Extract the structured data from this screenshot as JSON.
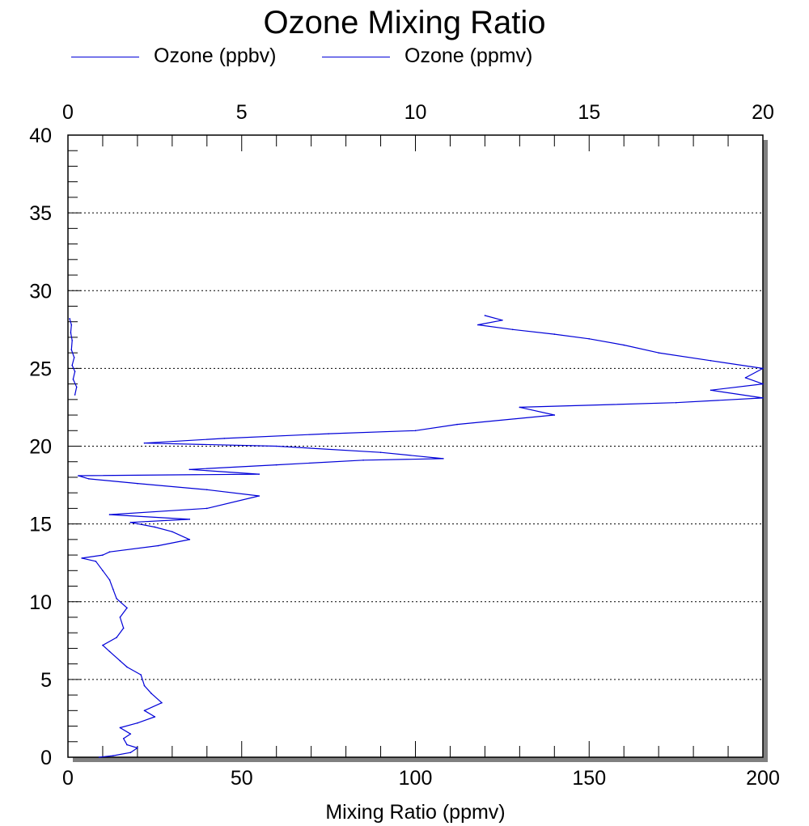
{
  "chart_data": {
    "type": "line",
    "title": "Ozone Mixing Ratio",
    "xlabel": "Mixing Ratio (ppmv)",
    "ylabel": "",
    "xlim_bottom": [
      0,
      200
    ],
    "xlim_top": [
      0,
      20
    ],
    "ylim": [
      0,
      40
    ],
    "x_ticks_bottom": [
      "0",
      "50",
      "100",
      "150",
      "200"
    ],
    "x_ticks_top": [
      "0",
      "5",
      "10",
      "15",
      "20"
    ],
    "y_ticks": [
      "0",
      "5",
      "10",
      "15",
      "20",
      "25",
      "30",
      "35",
      "40"
    ],
    "grid": "horizontal dotted",
    "legend_position": "top",
    "colors": {
      "series": "#0000d8",
      "shadow": "#808080"
    },
    "series": [
      {
        "name": "Ozone (ppbv)",
        "axis": "bottom",
        "points": [
          [
            9,
            0.0
          ],
          [
            13,
            0.1
          ],
          [
            18,
            0.3
          ],
          [
            20,
            0.6
          ],
          [
            17,
            0.8
          ],
          [
            16,
            1.2
          ],
          [
            18,
            1.5
          ],
          [
            15,
            1.9
          ],
          [
            20,
            2.2
          ],
          [
            25,
            2.6
          ],
          [
            22,
            3.0
          ],
          [
            27,
            3.5
          ],
          [
            24,
            4.1
          ],
          [
            22,
            4.6
          ],
          [
            21,
            5.3
          ],
          [
            17,
            5.8
          ],
          [
            15,
            6.2
          ],
          [
            12,
            6.8
          ],
          [
            10,
            7.2
          ],
          [
            14,
            7.7
          ],
          [
            16,
            8.3
          ],
          [
            15,
            9.0
          ],
          [
            17,
            9.6
          ],
          [
            14,
            10.2
          ],
          [
            13,
            10.8
          ],
          [
            12,
            11.4
          ],
          [
            10,
            12.0
          ],
          [
            8,
            12.6
          ],
          [
            4,
            12.8
          ],
          [
            10,
            13.0
          ],
          [
            12,
            13.2
          ],
          [
            26,
            13.6
          ],
          [
            35,
            14.0
          ],
          [
            30,
            14.5
          ],
          [
            25,
            14.8
          ],
          [
            18,
            15.1
          ],
          [
            35,
            15.3
          ],
          [
            12,
            15.6
          ],
          [
            40,
            16.0
          ],
          [
            55,
            16.8
          ],
          [
            40,
            17.2
          ],
          [
            20,
            17.6
          ],
          [
            6,
            17.9
          ],
          [
            3,
            18.1
          ],
          [
            55,
            18.2
          ],
          [
            35,
            18.5
          ],
          [
            60,
            18.8
          ],
          [
            85,
            19.1
          ],
          [
            108,
            19.2
          ],
          [
            90,
            19.6
          ],
          [
            60,
            20.0
          ],
          [
            22,
            20.2
          ],
          [
            45,
            20.5
          ],
          [
            75,
            20.8
          ],
          [
            100,
            21.0
          ],
          [
            112,
            21.4
          ],
          [
            140,
            22.0
          ],
          [
            130,
            22.5
          ],
          [
            175,
            22.8
          ],
          [
            200,
            23.1
          ],
          [
            185,
            23.6
          ],
          [
            200,
            24.0
          ],
          [
            195,
            24.4
          ],
          [
            200,
            25.0
          ],
          [
            185,
            25.5
          ],
          [
            170,
            26.0
          ],
          [
            160,
            26.5
          ],
          [
            150,
            26.9
          ],
          [
            140,
            27.2
          ],
          [
            128,
            27.5
          ],
          [
            118,
            27.8
          ],
          [
            125,
            28.1
          ],
          [
            120,
            28.4
          ]
        ]
      },
      {
        "name": "Ozone (ppmv)",
        "axis": "top",
        "points": [
          [
            0.2,
            23.3
          ],
          [
            0.25,
            23.8
          ],
          [
            0.15,
            24.3
          ],
          [
            0.2,
            24.8
          ],
          [
            0.12,
            25.2
          ],
          [
            0.18,
            25.7
          ],
          [
            0.1,
            26.2
          ],
          [
            0.12,
            26.8
          ],
          [
            0.08,
            27.3
          ],
          [
            0.1,
            27.8
          ],
          [
            0.05,
            28.2
          ]
        ]
      }
    ]
  }
}
